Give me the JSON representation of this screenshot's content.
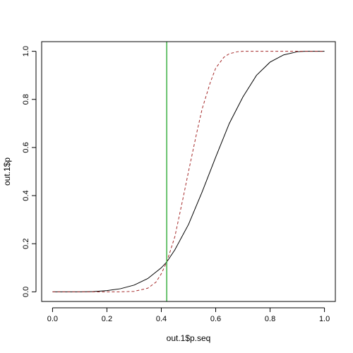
{
  "chart_data": {
    "type": "line",
    "title": "",
    "xlabel": "out.1$p.seq",
    "ylabel": "out.1$p",
    "xlim": [
      -0.04,
      1.04
    ],
    "ylim": [
      -0.04,
      1.04
    ],
    "x_ticks": [
      0.0,
      0.2,
      0.4,
      0.6,
      0.8,
      1.0
    ],
    "x_tick_labels": [
      "0.0",
      "0.2",
      "0.4",
      "0.6",
      "0.8",
      "1.0"
    ],
    "y_ticks": [
      0.0,
      0.2,
      0.4,
      0.6,
      0.8,
      1.0
    ],
    "y_tick_labels": [
      "0.0",
      "0.2",
      "0.4",
      "0.6",
      "0.8",
      "1.0"
    ],
    "grid": false,
    "series": [
      {
        "style": "solid",
        "color": "#000000",
        "x": [
          0.0,
          0.1,
          0.15,
          0.2,
          0.25,
          0.3,
          0.35,
          0.4,
          0.42,
          0.45,
          0.5,
          0.55,
          0.6,
          0.65,
          0.7,
          0.75,
          0.8,
          0.85,
          0.9,
          0.93,
          0.95,
          1.0
        ],
        "y": [
          0.0,
          0.0,
          0.001,
          0.005,
          0.013,
          0.028,
          0.055,
          0.1,
          0.124,
          0.175,
          0.28,
          0.415,
          0.56,
          0.7,
          0.81,
          0.9,
          0.955,
          0.985,
          0.998,
          1.0,
          1.0,
          1.0
        ]
      },
      {
        "style": "dashed",
        "color": "#a52a2a",
        "x": [
          0.0,
          0.25,
          0.3,
          0.35,
          0.38,
          0.4,
          0.42,
          0.45,
          0.48,
          0.5,
          0.53,
          0.55,
          0.58,
          0.6,
          0.63,
          0.65,
          0.68,
          0.7,
          0.75,
          1.0
        ],
        "y": [
          0.0,
          0.0,
          0.002,
          0.015,
          0.04,
          0.075,
          0.124,
          0.23,
          0.39,
          0.5,
          0.66,
          0.76,
          0.87,
          0.93,
          0.975,
          0.99,
          0.998,
          1.0,
          1.0,
          1.0
        ]
      }
    ],
    "vlines": [
      {
        "x": 0.42,
        "color": "#3cb043"
      }
    ]
  }
}
